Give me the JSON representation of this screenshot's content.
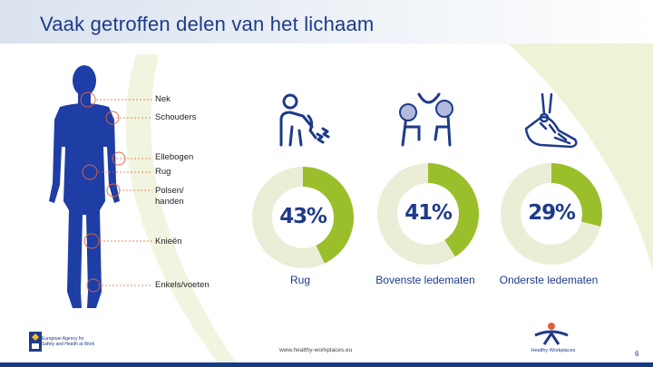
{
  "slide": {
    "title": "Vaak getroffen delen van het lichaam",
    "url": "www.healthy-workplaces.eu",
    "slide_number": "6"
  },
  "callouts": [
    "Nek",
    "Schouders",
    "Ellebogen",
    "Rug",
    "Polsen/ handen",
    "Knieën",
    "Enkels/voeten"
  ],
  "logos": {
    "left": "European Agency for Safety and Health at Work",
    "right": "Healthy Workplaces"
  },
  "colors": {
    "title": "#1e3a8a",
    "figure": "#1e3ea6",
    "donut_fill": "#9bbf2a",
    "donut_track": "#eaeed6",
    "callout_line": "#e0623a",
    "accent_swoosh": "#eef3d8"
  },
  "icons": [
    "back-pain-icon",
    "upper-limb-joints-icon",
    "foot-bones-icon"
  ],
  "chart_data": {
    "type": "pie",
    "categories": [
      "Rug",
      "Bovenste ledematen",
      "Onderste ledematen"
    ],
    "values": [
      43,
      41,
      29
    ],
    "data_labels": [
      "43%",
      "41%",
      "29%"
    ],
    "unit": "%"
  }
}
